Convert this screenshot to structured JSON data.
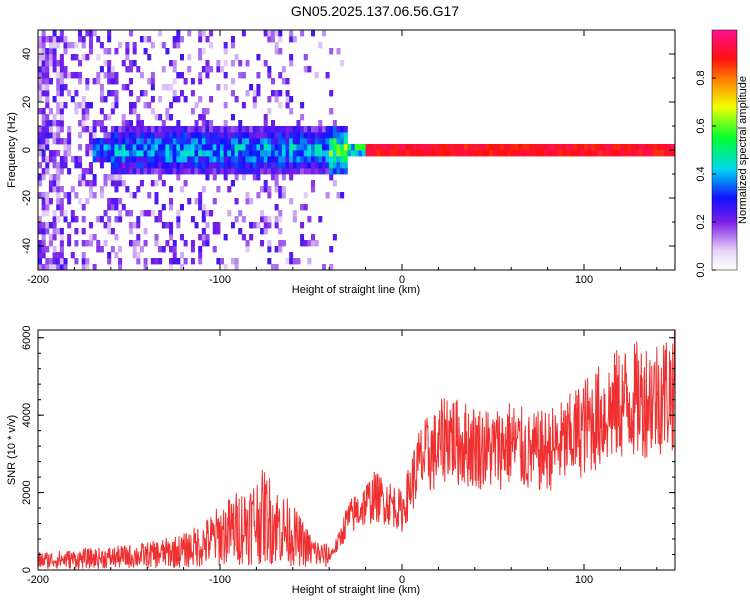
{
  "title": "GN05.2025.137.06.56.G17",
  "colors": {
    "snr_line": "#f03030",
    "spectrum_low": "#e6d6f8",
    "spectrum_mid": "#7a1fe8",
    "axis": "#000000"
  },
  "chart_data": [
    {
      "type": "heatmap",
      "name_id": "spectrogram",
      "xlabel": "Height of straight line (km)",
      "ylabel": "Frequency (Hz)",
      "xlim": [
        -200,
        150
      ],
      "ylim": [
        -50,
        50
      ],
      "xticks": [
        -200,
        -100,
        0,
        100
      ],
      "yticks": [
        -40,
        -20,
        0,
        20,
        40
      ],
      "colorbar": {
        "label": "Normalized spectral amplitude",
        "range": [
          0,
          1
        ],
        "ticks": [
          0.0,
          0.2,
          0.4,
          0.6,
          0.8
        ],
        "colormap": "rainbow"
      },
      "description_points": {
        "noise_region_x": [
          -200,
          -30
        ],
        "signal_center_freq": 0,
        "signal_strong_from_x": -20
      }
    },
    {
      "type": "line",
      "name_id": "snr",
      "xlabel": "Height of straight line (km)",
      "ylabel": "SNR (10 * v/v)",
      "xlim": [
        -200,
        150
      ],
      "ylim": [
        0,
        6200
      ],
      "xticks": [
        -200,
        -100,
        0,
        100
      ],
      "yticks": [
        0,
        2000,
        4000,
        6000
      ],
      "series": [
        {
          "x": [
            -200,
            -180,
            -160,
            -140,
            -120,
            -110,
            -100,
            -90,
            -80,
            -75,
            -70,
            -60,
            -50,
            -45,
            -40,
            -35,
            -30,
            -25,
            -20,
            -15,
            -10,
            -5,
            0,
            5,
            10,
            15,
            20,
            25,
            30,
            40,
            50,
            60,
            70,
            80,
            90,
            100,
            110,
            120,
            130,
            140,
            150
          ],
          "values": [
            250,
            280,
            320,
            380,
            500,
            650,
            900,
            1100,
            1300,
            1400,
            1200,
            900,
            500,
            400,
            350,
            700,
            1300,
            1500,
            1700,
            1900,
            1800,
            1700,
            1500,
            2200,
            2800,
            3000,
            3100,
            3600,
            3300,
            3200,
            3100,
            3300,
            3000,
            3100,
            3300,
            3700,
            4000,
            4300,
            4400,
            4500,
            4700
          ]
        }
      ]
    }
  ]
}
